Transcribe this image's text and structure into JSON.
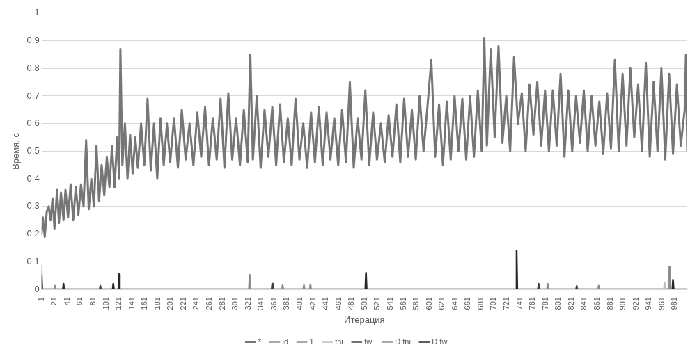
{
  "chart_data": {
    "type": "line",
    "xlabel": "Итерация",
    "ylabel": "Время, с",
    "xlim": [
      1,
      1000
    ],
    "xticks": [
      1,
      21,
      41,
      61,
      81,
      101,
      121,
      141,
      161,
      181,
      201,
      221,
      241,
      261,
      281,
      301,
      321,
      341,
      361,
      381,
      401,
      421,
      441,
      461,
      481,
      501,
      521,
      541,
      561,
      581,
      601,
      621,
      641,
      661,
      681,
      701,
      721,
      741,
      761,
      781,
      801,
      821,
      841,
      861,
      881,
      901,
      921,
      941,
      961,
      981
    ],
    "ylim": [
      0,
      1
    ],
    "yticks": [
      0,
      0.1,
      0.2,
      0.3,
      0.4,
      0.5,
      0.6,
      0.7,
      0.8,
      0.9,
      1
    ],
    "grid": "y",
    "legend": "bottom",
    "marker": "none",
    "series": [
      {
        "name": "*",
        "color": "#767676",
        "x": [
          1,
          3,
          6,
          9,
          12,
          15,
          18,
          21,
          25,
          28,
          31,
          35,
          38,
          42,
          46,
          50,
          54,
          58,
          62,
          66,
          70,
          74,
          78,
          82,
          86,
          90,
          94,
          98,
          102,
          106,
          110,
          114,
          118,
          121,
          123,
          126,
          130,
          134,
          138,
          142,
          146,
          150,
          155,
          160,
          165,
          170,
          175,
          180,
          185,
          190,
          195,
          200,
          206,
          212,
          218,
          224,
          230,
          236,
          242,
          248,
          254,
          260,
          266,
          272,
          278,
          284,
          290,
          296,
          302,
          308,
          314,
          320,
          324,
          328,
          334,
          340,
          346,
          352,
          358,
          364,
          370,
          376,
          382,
          388,
          394,
          400,
          406,
          412,
          418,
          424,
          430,
          436,
          442,
          448,
          454,
          460,
          466,
          472,
          478,
          484,
          490,
          496,
          502,
          508,
          514,
          520,
          526,
          532,
          538,
          544,
          550,
          556,
          562,
          568,
          574,
          580,
          586,
          592,
          598,
          604,
          610,
          616,
          622,
          628,
          634,
          640,
          646,
          652,
          658,
          664,
          670,
          676,
          682,
          686,
          690,
          696,
          702,
          708,
          714,
          720,
          726,
          732,
          738,
          744,
          750,
          756,
          762,
          768,
          774,
          780,
          786,
          792,
          798,
          804,
          810,
          816,
          822,
          828,
          834,
          840,
          846,
          852,
          858,
          864,
          870,
          876,
          882,
          888,
          894,
          900,
          906,
          912,
          918,
          924,
          930,
          936,
          942,
          948,
          954,
          960,
          966,
          972,
          978,
          984,
          990,
          996,
          998,
          1000
        ],
        "values": [
          0.2,
          0.26,
          0.19,
          0.28,
          0.3,
          0.25,
          0.33,
          0.22,
          0.36,
          0.24,
          0.35,
          0.25,
          0.36,
          0.26,
          0.38,
          0.25,
          0.37,
          0.27,
          0.38,
          0.3,
          0.54,
          0.29,
          0.4,
          0.3,
          0.52,
          0.32,
          0.45,
          0.34,
          0.48,
          0.37,
          0.52,
          0.37,
          0.55,
          0.4,
          0.87,
          0.45,
          0.6,
          0.4,
          0.56,
          0.42,
          0.55,
          0.44,
          0.6,
          0.45,
          0.69,
          0.43,
          0.6,
          0.4,
          0.62,
          0.45,
          0.6,
          0.46,
          0.62,
          0.44,
          0.65,
          0.47,
          0.6,
          0.45,
          0.64,
          0.48,
          0.66,
          0.45,
          0.62,
          0.47,
          0.69,
          0.44,
          0.71,
          0.47,
          0.62,
          0.45,
          0.65,
          0.46,
          0.85,
          0.47,
          0.7,
          0.44,
          0.65,
          0.48,
          0.66,
          0.45,
          0.67,
          0.46,
          0.62,
          0.45,
          0.69,
          0.47,
          0.6,
          0.44,
          0.64,
          0.46,
          0.66,
          0.45,
          0.64,
          0.47,
          0.62,
          0.45,
          0.65,
          0.46,
          0.75,
          0.44,
          0.62,
          0.47,
          0.72,
          0.45,
          0.64,
          0.47,
          0.6,
          0.46,
          0.63,
          0.48,
          0.67,
          0.46,
          0.69,
          0.48,
          0.65,
          0.47,
          0.7,
          0.5,
          0.66,
          0.83,
          0.48,
          0.67,
          0.45,
          0.68,
          0.47,
          0.7,
          0.5,
          0.69,
          0.47,
          0.7,
          0.48,
          0.72,
          0.5,
          0.91,
          0.52,
          0.87,
          0.55,
          0.88,
          0.53,
          0.7,
          0.5,
          0.84,
          0.6,
          0.71,
          0.5,
          0.74,
          0.56,
          0.75,
          0.52,
          0.72,
          0.5,
          0.72,
          0.52,
          0.78,
          0.48,
          0.72,
          0.5,
          0.7,
          0.53,
          0.72,
          0.5,
          0.7,
          0.52,
          0.68,
          0.49,
          0.71,
          0.51,
          0.83,
          0.5,
          0.78,
          0.52,
          0.8,
          0.55,
          0.74,
          0.5,
          0.82,
          0.48,
          0.75,
          0.5,
          0.8,
          0.47,
          0.78,
          0.49,
          0.74,
          0.52,
          0.65,
          0.85,
          0.5
        ]
      },
      {
        "name": "id",
        "color": "#8c8c8c"
      },
      {
        "name": "1",
        "color": "#8c8c8c"
      },
      {
        "name": "fni",
        "color": "#bfbfbf",
        "x": [
          964,
          965,
          966
        ],
        "values": [
          0,
          0.025,
          0
        ]
      },
      {
        "name": "fwi",
        "color": "#404040",
        "x": [
          1,
          2,
          50,
          91,
          92,
          93,
          200,
          357,
          358,
          359,
          500,
          769,
          770,
          771,
          800,
          828,
          829,
          830
        ],
        "values": [
          0.05,
          0,
          null,
          0,
          0.013,
          0,
          null,
          0,
          0.02,
          0,
          null,
          0,
          0.02,
          0,
          null,
          0,
          0.012,
          0
        ]
      },
      {
        "name": "D fni",
        "color": "#8c8c8c",
        "x": [
          1,
          2,
          10,
          21,
          22,
          23,
          100,
          322,
          323,
          324,
          350,
          373,
          374,
          375,
          390,
          406,
          407,
          408,
          412,
          416,
          417,
          418,
          600,
          783,
          784,
          785,
          820,
          862,
          863,
          864,
          900,
          971,
          972,
          973
        ],
        "values": [
          0.085,
          0,
          null,
          0,
          0.013,
          0,
          null,
          0,
          0.053,
          0,
          null,
          0,
          0.015,
          0,
          null,
          0,
          0.015,
          0,
          null,
          0,
          0.018,
          0,
          null,
          0,
          0.02,
          0,
          null,
          0,
          0.013,
          0,
          null,
          0,
          0.08,
          0
        ]
      },
      {
        "name": "D fwi",
        "color": "#262626",
        "x": [
          1,
          34,
          35,
          36,
          111,
          112,
          113,
          120,
          121,
          122,
          502,
          503,
          504,
          735,
          736,
          737,
          977,
          978,
          979,
          1000
        ],
        "values": [
          0,
          0,
          0.02,
          0,
          0,
          0.02,
          0,
          0,
          0.055,
          0,
          0,
          0.06,
          0,
          0,
          0.14,
          0,
          0,
          0.035,
          0,
          0
        ]
      }
    ]
  }
}
